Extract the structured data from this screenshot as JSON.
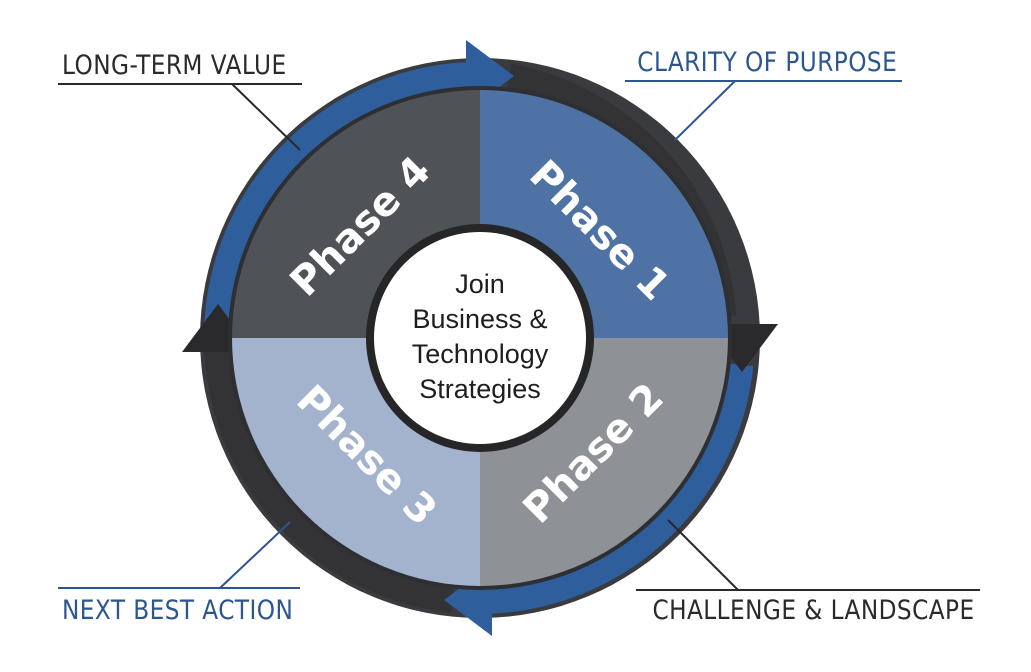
{
  "title": "",
  "center": {
    "lines": [
      "Join",
      "Business &",
      "Technology",
      "Strategies"
    ]
  },
  "phases": [
    {
      "id": "phase-1",
      "label": "Phase 1",
      "color": "#4f72a5"
    },
    {
      "id": "phase-2",
      "label": "Phase 2",
      "color": "#8e9196"
    },
    {
      "id": "phase-3",
      "label": "Phase 3",
      "color": "#a3b3cd"
    },
    {
      "id": "phase-4",
      "label": "Phase 4",
      "color": "#4f5257"
    }
  ],
  "callouts": [
    {
      "id": "clarity",
      "label": "CLARITY OF PURPOSE",
      "color": "#2c5690"
    },
    {
      "id": "challenge",
      "label": "CHALLENGE & LANDSCAPE",
      "color": "#2a2a2a"
    },
    {
      "id": "next",
      "label": "NEXT BEST ACTION",
      "color": "#2c5690"
    },
    {
      "id": "long",
      "label": "LONG-TERM VALUE",
      "color": "#2a2a2a"
    }
  ],
  "colors": {
    "blue_arrow": "#2e5e9c",
    "dark_arrow": "#333336",
    "ring_dark": "#2e2f33"
  }
}
